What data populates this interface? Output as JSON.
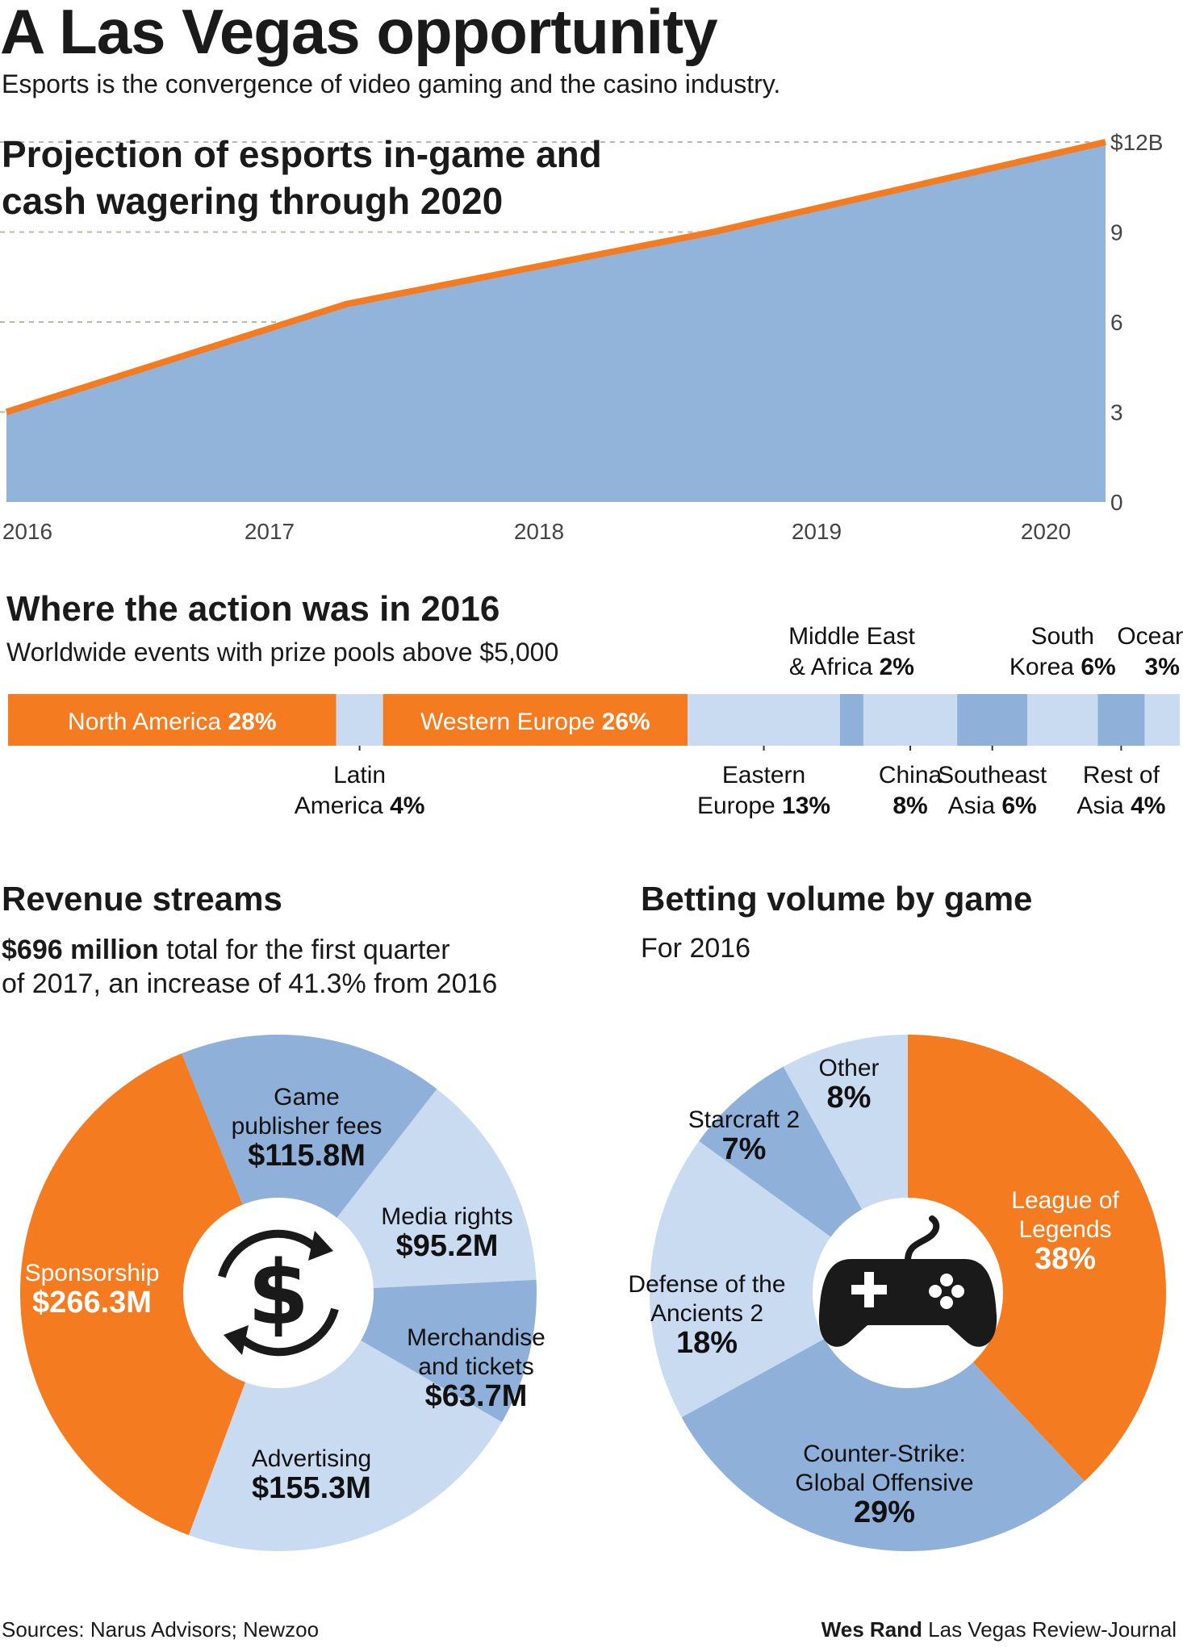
{
  "header": {
    "title": "A Las Vegas opportunity",
    "subtitle": "Esports is the convergence of video gaming and the casino industry."
  },
  "projection": {
    "title_line1": "Projection of esports in-game and",
    "title_line2": "cash wagering through 2020"
  },
  "regions": {
    "title": "Where the action was in 2016",
    "subtitle": "Worldwide events with prize pools above $5,000"
  },
  "revenue": {
    "title": "Revenue streams",
    "sub_bold": "$696 million",
    "sub_rest": " total for the first quarter",
    "sub_line2": "of 2017, an increase of 41.3% from 2016",
    "icon": "dollar-cycle-icon"
  },
  "betting": {
    "title": "Betting volume by game",
    "subtitle": "For 2016",
    "icon": "gamepad-icon"
  },
  "footer": {
    "sources": "Sources: Narus Advisors; Newzoo",
    "credit_name": "Wes Rand",
    "credit_org": " Las Vegas Review-Journal"
  },
  "colors": {
    "orange": "#f47b20",
    "mid_blue": "#8fb1d9",
    "light_blue": "#c9dbf1",
    "area_blue": "#93b4da",
    "dark": "#1a1a1a"
  },
  "chart_data": [
    {
      "type": "area",
      "title": "Projection of esports in-game and cash wagering through 2020",
      "x": [
        2016,
        2017,
        2018,
        2019,
        2020
      ],
      "x_labels": [
        "2016",
        "2017",
        "2018",
        "2019",
        "2020"
      ],
      "points": [
        {
          "x": 2016.0,
          "y": 3.0
        },
        {
          "x": 2017.3,
          "y": 6.6
        },
        {
          "x": 2018.7,
          "y": 9.0
        },
        {
          "x": 2020.2,
          "y": 12.0
        }
      ],
      "ylim": [
        0,
        12
      ],
      "y_ticks": [
        0,
        3,
        6,
        9,
        12
      ],
      "y_tick_labels": [
        "0",
        "3",
        "6",
        "9",
        "$12B"
      ],
      "grid": "horizontal-dashed"
    },
    {
      "type": "bar",
      "stacked": "horizontal-100%",
      "segments": [
        {
          "name": "North America",
          "value": 28,
          "label": "28%",
          "color": "#f47b20",
          "label_pos": "inside"
        },
        {
          "name": "Latin America",
          "line1": "Latin",
          "line2": "America",
          "value": 4,
          "label": "4%",
          "color": "#c9dbf1",
          "label_pos": "below"
        },
        {
          "name": "Western Europe",
          "value": 26,
          "label": "26%",
          "color": "#f47b20",
          "label_pos": "inside"
        },
        {
          "name": "Eastern Europe",
          "line1": "Eastern",
          "line2": "Europe",
          "value": 13,
          "label": "13%",
          "color": "#c9dbf1",
          "label_pos": "below"
        },
        {
          "name": "Middle East & Africa",
          "line1": "Middle East",
          "line2": "& Africa",
          "value": 2,
          "label": "2%",
          "color": "#8fb1d9",
          "label_pos": "above"
        },
        {
          "name": "China",
          "line1": "China",
          "line2": "",
          "value": 8,
          "label": "8%",
          "color": "#c9dbf1",
          "label_pos": "below"
        },
        {
          "name": "Southeast Asia",
          "line1": "Southeast",
          "line2": "Asia",
          "value": 6,
          "label": "6%",
          "color": "#8fb1d9",
          "label_pos": "below"
        },
        {
          "name": "South Korea",
          "line1": "South",
          "line2": "Korea",
          "value": 6,
          "label": "6%",
          "color": "#c9dbf1",
          "label_pos": "above"
        },
        {
          "name": "Rest of Asia",
          "line1": "Rest of",
          "line2": "Asia",
          "value": 4,
          "label": "4%",
          "color": "#8fb1d9",
          "label_pos": "below"
        },
        {
          "name": "Oceania",
          "line1": "Oceania",
          "line2": "",
          "value": 3,
          "label": "3%",
          "color": "#c9dbf1",
          "label_pos": "above"
        }
      ]
    },
    {
      "type": "pie",
      "donut": true,
      "title": "Revenue streams",
      "slices": [
        {
          "name": "Game publisher fees",
          "line1": "Game",
          "line2": "publisher fees",
          "value": 115.8,
          "label": "$115.8M",
          "color": "#8fb1d9"
        },
        {
          "name": "Media rights",
          "line1": "Media rights",
          "line2": "",
          "value": 95.2,
          "label": "$95.2M",
          "color": "#c9dbf1"
        },
        {
          "name": "Merchandise and tickets",
          "line1": "Merchandise",
          "line2": "and tickets",
          "value": 63.7,
          "label": "$63.7M",
          "color": "#8fb1d9"
        },
        {
          "name": "Advertising",
          "line1": "Advertising",
          "line2": "",
          "value": 155.3,
          "label": "$155.3M",
          "color": "#c9dbf1"
        },
        {
          "name": "Sponsorship",
          "line1": "Sponsorship",
          "line2": "",
          "value": 266.3,
          "label": "$266.3M",
          "color": "#f47b20"
        }
      ]
    },
    {
      "type": "pie",
      "donut": true,
      "title": "Betting volume by game",
      "slices": [
        {
          "name": "League of Legends",
          "line1": "League of",
          "line2": "Legends",
          "value": 38,
          "label": "38%",
          "color": "#f47b20"
        },
        {
          "name": "Counter-Strike: Global Offensive",
          "line1": "Counter-Strike:",
          "line2": "Global Offensive",
          "value": 29,
          "label": "29%",
          "color": "#8fb1d9"
        },
        {
          "name": "Defense of the Ancients 2",
          "line1": "Defense of the",
          "line2": "Ancients 2",
          "value": 18,
          "label": "18%",
          "color": "#c9dbf1"
        },
        {
          "name": "Starcraft 2",
          "line1": "Starcraft 2",
          "line2": "",
          "value": 7,
          "label": "7%",
          "color": "#8fb1d9"
        },
        {
          "name": "Other",
          "line1": "Other",
          "line2": "",
          "value": 8,
          "label": "8%",
          "color": "#c9dbf1"
        }
      ]
    }
  ]
}
